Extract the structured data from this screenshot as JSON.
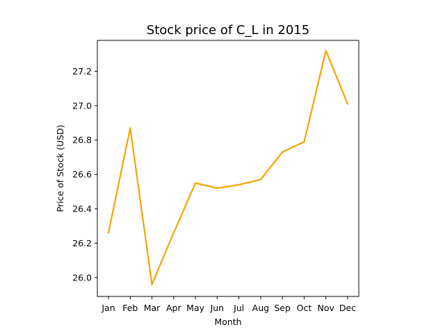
{
  "chart_data": {
    "type": "line",
    "title": "Stock price of C_L in 2015",
    "xlabel": "Month",
    "ylabel": "Price of Stock (USD)",
    "categories": [
      "Jan",
      "Feb",
      "Mar",
      "Apr",
      "May",
      "Jun",
      "Jul",
      "Aug",
      "Sep",
      "Oct",
      "Nov",
      "Dec"
    ],
    "series": [
      {
        "values": [
          26.26,
          26.87,
          25.96,
          26.26,
          26.55,
          26.52,
          26.54,
          26.57,
          26.73,
          26.79,
          27.32,
          27.01
        ]
      }
    ],
    "ylim": [
      25.89,
      27.38
    ],
    "yticks": [
      26.0,
      26.2,
      26.4,
      26.6,
      26.8,
      27.0,
      27.2
    ],
    "ytick_labels": [
      "26.0",
      "26.2",
      "26.4",
      "26.6",
      "26.8",
      "27.0",
      "27.2"
    ],
    "line_color": "#f5a300",
    "grid": false,
    "legend": "none"
  }
}
